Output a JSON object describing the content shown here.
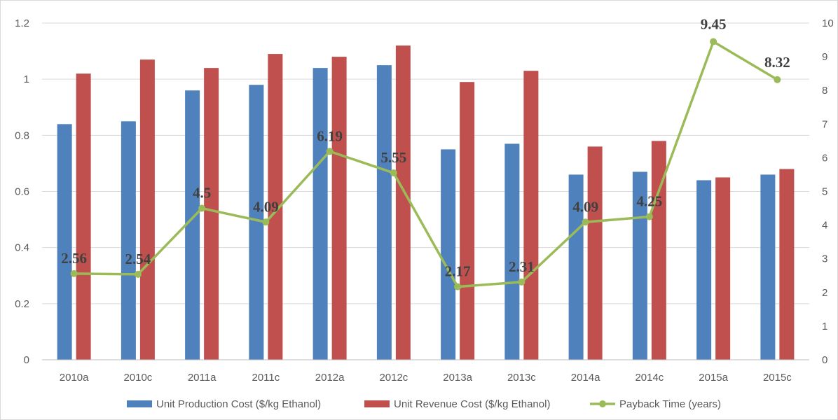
{
  "chart_data": {
    "type": "bar",
    "categories": [
      "2010a",
      "2010c",
      "2011a",
      "2011c",
      "2012a",
      "2012c",
      "2013a",
      "2013c",
      "2014a",
      "2014c",
      "2015a",
      "2015c"
    ],
    "series": [
      {
        "name": "Unit Production Cost ($/kg Ethanol)",
        "type": "bar",
        "axis": "left",
        "color": "#4f81bd",
        "values": [
          0.84,
          0.85,
          0.96,
          0.98,
          1.04,
          1.05,
          0.75,
          0.77,
          0.66,
          0.67,
          0.64,
          0.66
        ]
      },
      {
        "name": "Unit Revenue Cost ($/kg Ethanol)",
        "type": "bar",
        "axis": "left",
        "color": "#c0504d",
        "values": [
          1.02,
          1.07,
          1.04,
          1.09,
          1.08,
          1.12,
          0.99,
          1.03,
          0.76,
          0.78,
          0.65,
          0.68
        ]
      },
      {
        "name": "Payback Time (years)",
        "type": "line",
        "axis": "right",
        "color": "#9bbb59",
        "values": [
          2.56,
          2.54,
          4.5,
          4.09,
          6.19,
          5.55,
          2.17,
          2.31,
          4.09,
          4.25,
          9.45,
          8.32
        ],
        "data_labels": [
          "2.56",
          "2.54",
          "4.5",
          "4.09",
          "6.19",
          "5.55",
          "2.17",
          "2.31",
          "4.09",
          "4.25",
          "9.45",
          "8.32"
        ]
      }
    ],
    "y_left": {
      "range": [
        0,
        1.2
      ],
      "ticks": [
        "0",
        "0.2",
        "0.4",
        "0.6",
        "0.8",
        "1",
        "1.2"
      ]
    },
    "y_right": {
      "range": [
        0,
        10
      ],
      "ticks": [
        "0",
        "1",
        "2",
        "3",
        "4",
        "5",
        "6",
        "7",
        "8",
        "9",
        "10"
      ]
    },
    "grid": true,
    "legend_position": "bottom"
  }
}
